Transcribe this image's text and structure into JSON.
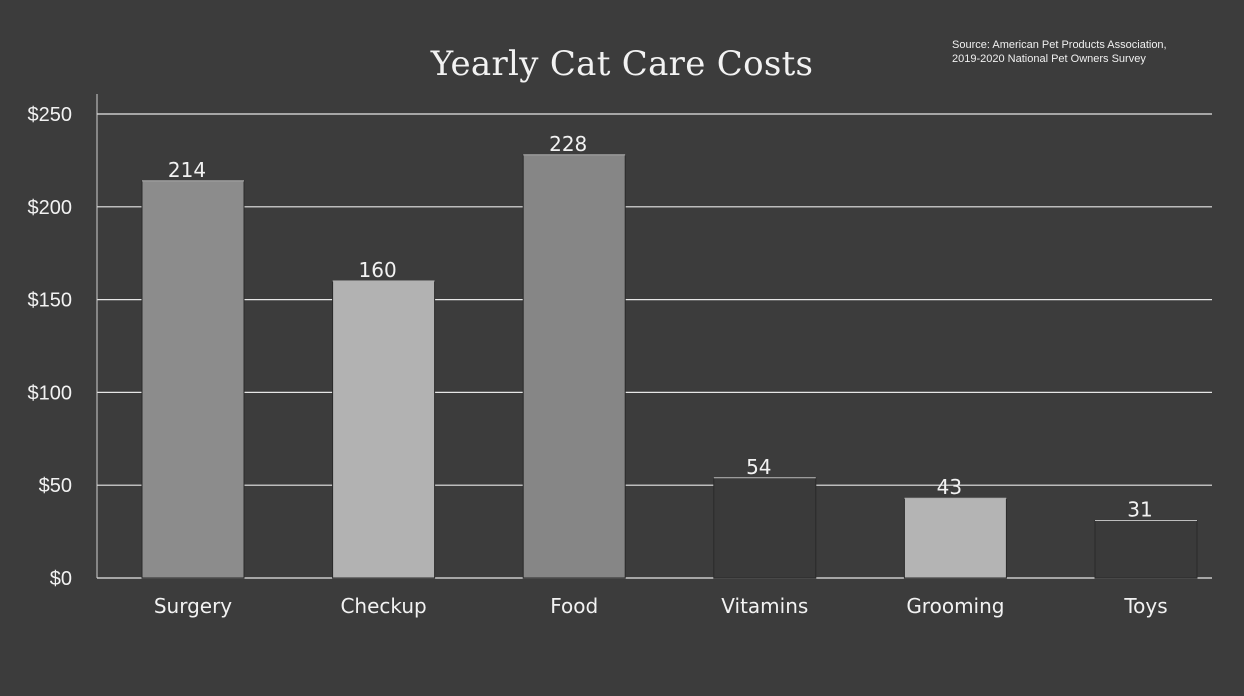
{
  "chart_data": {
    "type": "bar",
    "title": "Yearly Cat Care Costs",
    "source_lines": [
      "Source: American Pet Products Association,",
      "2019-2020 National Pet Owners Survey"
    ],
    "categories": [
      "Surgery",
      "Checkup",
      "Food",
      "Vitamins",
      "Grooming",
      "Toys"
    ],
    "values": [
      214,
      160,
      228,
      54,
      43,
      31
    ],
    "data_labels": [
      "214",
      "160",
      "228",
      "54",
      "43",
      "31"
    ],
    "bar_colors": [
      "#8c8c8c",
      "#b2b2b2",
      "#868686",
      "#3a3a3a",
      "#b4b4b4",
      "#3a3a3a"
    ],
    "ylim": [
      0,
      250
    ],
    "yticks": [
      0,
      50,
      100,
      150,
      200,
      250
    ],
    "ytick_labels": [
      "$0",
      "$50",
      "$100",
      "$150",
      "$200",
      "$250"
    ],
    "xlabel": "",
    "ylabel": "",
    "grid": true,
    "legend": "none"
  }
}
